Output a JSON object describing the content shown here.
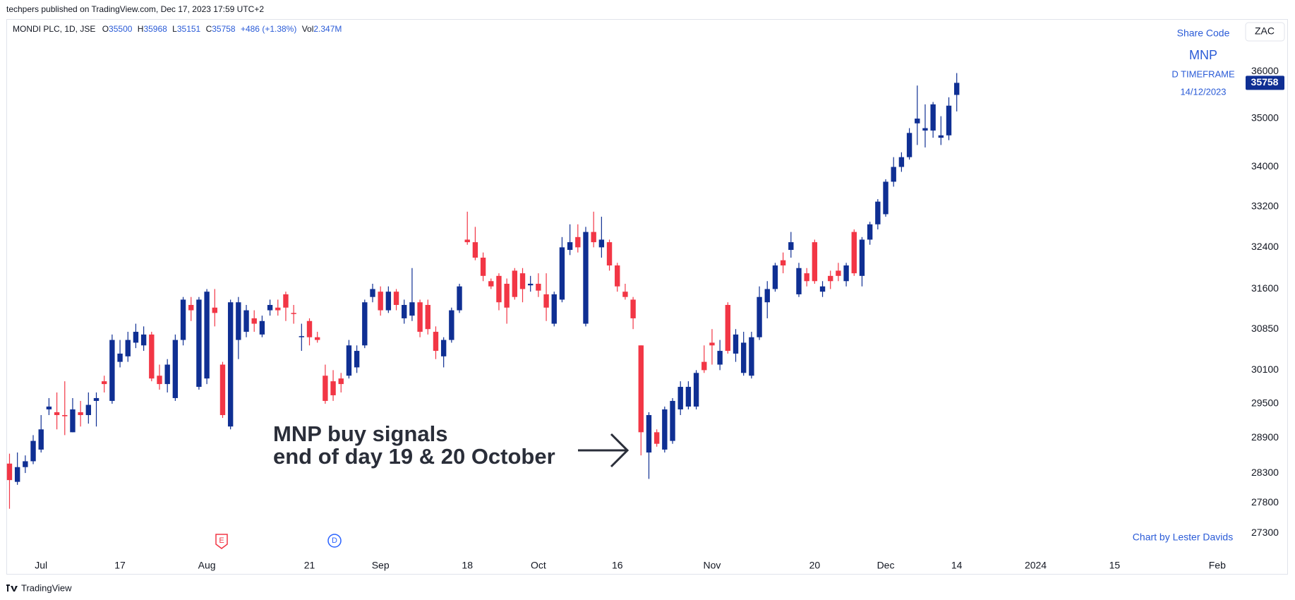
{
  "header": {
    "published": "techpers published on TradingView.com, Dec 17, 2023 17:59 UTC+2",
    "symbol": "MONDI PLC, 1D, JSE",
    "ohlc": [
      {
        "key": "O",
        "value": "35500"
      },
      {
        "key": "H",
        "value": "35968"
      },
      {
        "key": "L",
        "value": "35151"
      },
      {
        "key": "C",
        "value": "35758"
      }
    ],
    "change": "+486 (+1.38%)",
    "volume_key": "Vol",
    "volume": "2.347M"
  },
  "currency_button": "ZAC",
  "side_note": {
    "label": "Share Code",
    "code": "MNP",
    "timeframe": "D TIMEFRAME",
    "date": "14/12/2023"
  },
  "credit": "Chart by Lester Davids",
  "annotation": {
    "lines": [
      "MNP buy signals",
      "end of day 19 & 20 October"
    ]
  },
  "events": [
    {
      "label": "E",
      "color": "#f23645"
    },
    {
      "label": "D",
      "color": "#2962ff"
    }
  ],
  "footer": "TradingView",
  "chart_data": {
    "type": "candlestick",
    "log": true,
    "up_color": "#0f2f93",
    "down_color": "#f23645",
    "ylim": [
      26960,
      37020
    ],
    "yticks": [
      27300,
      27800,
      28300,
      28900,
      29500,
      30100,
      30850,
      31600,
      32400,
      33200,
      34000,
      35000,
      36000
    ],
    "xlim": [
      -0.4,
      155.7
    ],
    "xticks": [
      {
        "value": 4,
        "label": "Jul"
      },
      {
        "value": 14,
        "label": "17"
      },
      {
        "value": 25,
        "label": "Aug"
      },
      {
        "value": 38,
        "label": "21"
      },
      {
        "value": 47,
        "label": "Sep"
      },
      {
        "value": 58,
        "label": "18"
      },
      {
        "value": 67,
        "label": "Oct"
      },
      {
        "value": 77,
        "label": "16"
      },
      {
        "value": 89,
        "label": "Nov"
      },
      {
        "value": 102,
        "label": "20"
      },
      {
        "value": 111,
        "label": "Dec"
      },
      {
        "value": 120,
        "label": "14"
      },
      {
        "value": 130,
        "label": "2024"
      },
      {
        "value": 140,
        "label": "15"
      },
      {
        "value": 153,
        "label": "Feb"
      }
    ],
    "ohlc": [
      [
        28460,
        28630,
        27700,
        28180
      ],
      [
        28150,
        28650,
        28100,
        28400
      ],
      [
        28400,
        28600,
        28300,
        28500
      ],
      [
        28500,
        28950,
        28450,
        28850
      ],
      [
        28700,
        29300,
        28650,
        29050
      ],
      [
        29400,
        29600,
        29300,
        29450
      ],
      [
        29350,
        29700,
        29050,
        29300
      ],
      [
        29300,
        29900,
        28950,
        29280
      ],
      [
        29000,
        29600,
        29000,
        29400
      ],
      [
        29350,
        29550,
        29100,
        29300
      ],
      [
        29300,
        29700,
        29150,
        29480
      ],
      [
        29550,
        29700,
        29100,
        29600
      ],
      [
        29900,
        30000,
        29700,
        29850
      ],
      [
        29550,
        30750,
        29500,
        30650
      ],
      [
        30250,
        30650,
        30150,
        30400
      ],
      [
        30350,
        30800,
        30250,
        30650
      ],
      [
        30600,
        30950,
        30500,
        30800
      ],
      [
        30550,
        30900,
        30450,
        30750
      ],
      [
        30750,
        30800,
        29900,
        29950
      ],
      [
        30000,
        30200,
        29750,
        29850
      ],
      [
        29850,
        30300,
        29700,
        30200
      ],
      [
        29600,
        30750,
        29550,
        30650
      ],
      [
        30650,
        31450,
        30550,
        31400
      ],
      [
        31300,
        31450,
        31000,
        31200
      ],
      [
        29800,
        31450,
        29750,
        31400
      ],
      [
        29950,
        31600,
        29850,
        31550
      ],
      [
        31250,
        31600,
        30900,
        31150
      ],
      [
        30200,
        30250,
        29250,
        29300
      ],
      [
        29100,
        31400,
        29050,
        31350
      ],
      [
        30650,
        31450,
        30300,
        31350
      ],
      [
        30800,
        31300,
        30700,
        31200
      ],
      [
        31050,
        31200,
        30800,
        30950
      ],
      [
        30750,
        31100,
        30700,
        31000
      ],
      [
        31200,
        31400,
        31100,
        31300
      ],
      [
        31250,
        31400,
        31100,
        31200
      ],
      [
        31500,
        31550,
        31000,
        31250
      ],
      [
        31150,
        31300,
        30950,
        31130
      ],
      [
        30700,
        30950,
        30450,
        30720
      ],
      [
        31000,
        31050,
        30550,
        30700
      ],
      [
        30700,
        30800,
        30600,
        30650
      ],
      [
        30000,
        30200,
        29500,
        29550
      ],
      [
        29900,
        30100,
        29550,
        29650
      ],
      [
        29950,
        30050,
        29700,
        29850
      ],
      [
        30000,
        30650,
        29950,
        30550
      ],
      [
        30150,
        30550,
        30050,
        30450
      ],
      [
        30550,
        31400,
        30500,
        31350
      ],
      [
        31450,
        31700,
        31350,
        31600
      ],
      [
        31550,
        31650,
        31100,
        31200
      ],
      [
        31200,
        31650,
        31150,
        31550
      ],
      [
        31550,
        31600,
        31200,
        31300
      ],
      [
        31050,
        31400,
        30950,
        31300
      ],
      [
        31100,
        32000,
        31000,
        31350
      ],
      [
        31350,
        31400,
        30700,
        30800
      ],
      [
        31300,
        31400,
        30750,
        30850
      ],
      [
        30800,
        30900,
        30300,
        30450
      ],
      [
        30350,
        30700,
        30150,
        30650
      ],
      [
        30650,
        31250,
        30600,
        31200
      ],
      [
        31200,
        31700,
        31150,
        31650
      ],
      [
        32550,
        33100,
        32450,
        32500
      ],
      [
        32500,
        32800,
        32150,
        32200
      ],
      [
        32200,
        32300,
        31750,
        31850
      ],
      [
        31750,
        31800,
        31600,
        31650
      ],
      [
        31850,
        31900,
        31200,
        31350
      ],
      [
        31700,
        31800,
        30950,
        31250
      ],
      [
        31950,
        32000,
        31400,
        31450
      ],
      [
        31900,
        32000,
        31350,
        31600
      ],
      [
        31670,
        31850,
        31550,
        31700
      ],
      [
        31700,
        31900,
        31450,
        31570
      ],
      [
        31500,
        31900,
        31000,
        31250
      ],
      [
        30950,
        31550,
        30900,
        31500
      ],
      [
        31400,
        32600,
        31350,
        32400
      ],
      [
        32350,
        32850,
        32250,
        32500
      ],
      [
        32600,
        32850,
        32300,
        32400
      ],
      [
        30950,
        32800,
        30900,
        32700
      ],
      [
        32700,
        33100,
        32400,
        32500
      ],
      [
        32400,
        33000,
        32200,
        32550
      ],
      [
        32500,
        32550,
        31950,
        32050
      ],
      [
        32050,
        32100,
        31550,
        31650
      ],
      [
        31550,
        31700,
        31400,
        31450
      ],
      [
        31400,
        31450,
        30850,
        31050
      ],
      [
        30550,
        30550,
        28600,
        29000
      ],
      [
        28650,
        29350,
        28200,
        29300
      ],
      [
        29000,
        29050,
        28750,
        28800
      ],
      [
        28700,
        29450,
        28650,
        29400
      ],
      [
        28850,
        29600,
        28800,
        29550
      ],
      [
        29400,
        29900,
        29300,
        29800
      ],
      [
        29450,
        29900,
        29400,
        29800
      ],
      [
        29450,
        30100,
        29400,
        30050
      ],
      [
        30250,
        30550,
        30050,
        30100
      ],
      [
        30600,
        30850,
        30200,
        30550
      ],
      [
        30200,
        30650,
        30100,
        30450
      ],
      [
        31300,
        31350,
        30400,
        30450
      ],
      [
        30400,
        30850,
        30250,
        30750
      ],
      [
        30050,
        30800,
        30000,
        30600
      ],
      [
        30000,
        30800,
        29950,
        30700
      ],
      [
        30700,
        31650,
        30650,
        31450
      ],
      [
        31350,
        31750,
        31050,
        31600
      ],
      [
        31600,
        32100,
        31550,
        32050
      ],
      [
        32150,
        32300,
        31900,
        32050
      ],
      [
        32350,
        32700,
        32200,
        32500
      ],
      [
        31500,
        32100,
        31450,
        32000
      ],
      [
        31900,
        32000,
        31650,
        31750
      ],
      [
        32500,
        32550,
        31700,
        31750
      ],
      [
        31550,
        31750,
        31450,
        31650
      ],
      [
        31850,
        31950,
        31600,
        31750
      ],
      [
        31950,
        32100,
        31750,
        31850
      ],
      [
        31750,
        32100,
        31650,
        32050
      ],
      [
        32700,
        32750,
        31850,
        31900
      ],
      [
        31850,
        32600,
        31650,
        32550
      ],
      [
        32550,
        32900,
        32450,
        32850
      ],
      [
        32850,
        33350,
        32750,
        33300
      ],
      [
        33050,
        33750,
        33000,
        33700
      ],
      [
        33700,
        34200,
        33600,
        34000
      ],
      [
        34000,
        34300,
        33900,
        34200
      ],
      [
        34200,
        34800,
        34150,
        34700
      ],
      [
        34900,
        35700,
        34450,
        35000
      ],
      [
        34750,
        35300,
        34400,
        34800
      ],
      [
        34750,
        35350,
        34600,
        35300
      ],
      [
        34600,
        35050,
        34450,
        34650
      ],
      [
        34650,
        35450,
        34550,
        35272
      ],
      [
        35500,
        35968,
        35151,
        35758
      ]
    ]
  }
}
